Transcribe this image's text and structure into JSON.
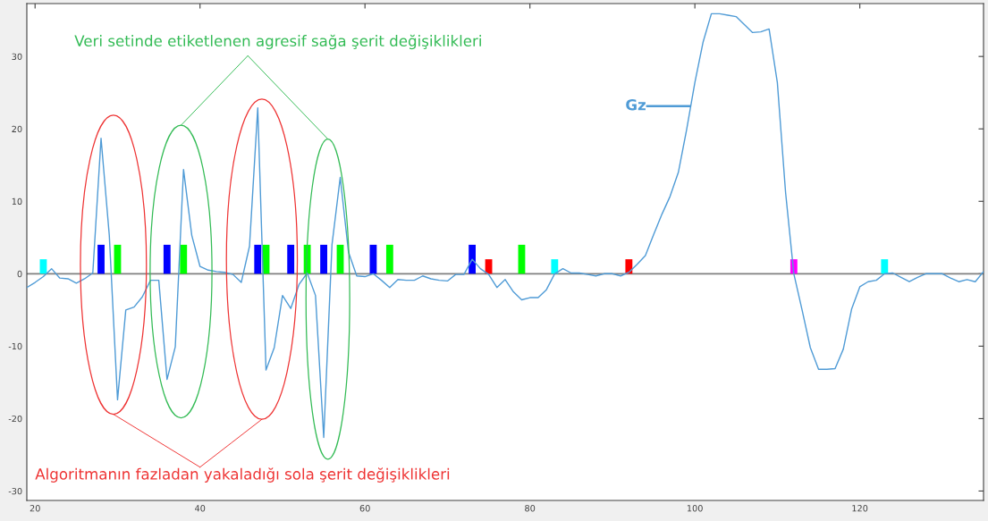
{
  "chart_data": {
    "type": "line",
    "xlim": [
      19,
      135
    ],
    "ylim": [
      -31.3,
      37.3
    ],
    "xticks": [
      20,
      40,
      60,
      80,
      100,
      120
    ],
    "yticks": [
      -30,
      -20,
      -10,
      0,
      10,
      20,
      30
    ],
    "grid": false,
    "annotations": [
      "Veri setinde etiketlenen agresif sağa şerit değişiklikleri",
      "Algoritmanın fazladan yakaladığı sola şerit değişiklikleri"
    ],
    "ref_lines": [
      {
        "axis": "y",
        "value": 0,
        "color": "#808080"
      }
    ],
    "series": [
      {
        "name": "Gz",
        "color": "#4f9bd6",
        "x": [
          19,
          20,
          21,
          22,
          23,
          24,
          25,
          26,
          27,
          28,
          29,
          30,
          31,
          32,
          33,
          34,
          35,
          36,
          37,
          38,
          39,
          40,
          41,
          42,
          43,
          44,
          45,
          46,
          47,
          48,
          49,
          50,
          51,
          52,
          53,
          54,
          55,
          56,
          57,
          58,
          59,
          60,
          61,
          62,
          63,
          64,
          65,
          66,
          67,
          68,
          69,
          70,
          71,
          72,
          73,
          74,
          75,
          76,
          77,
          78,
          79,
          80,
          81,
          82,
          83,
          84,
          85,
          86,
          87,
          88,
          89,
          90,
          91,
          92,
          93,
          94,
          95,
          96,
          97,
          98,
          99,
          100,
          101,
          102,
          103,
          104,
          105,
          106,
          107,
          108,
          109,
          110,
          111,
          112,
          113,
          114,
          115,
          116,
          117,
          118,
          119,
          120,
          121,
          122,
          123,
          124,
          125,
          126,
          127,
          128,
          129,
          130,
          131,
          132,
          133,
          134,
          135
        ],
        "values": [
          -1.9,
          -1.2,
          -0.4,
          0.7,
          -0.6,
          -0.7,
          -1.3,
          -0.7,
          0.1,
          18.7,
          5.3,
          -17.4,
          -5.0,
          -4.6,
          -3.2,
          -0.9,
          -0.9,
          -14.6,
          -10.1,
          14.4,
          5.3,
          1.0,
          0.5,
          0.3,
          0.2,
          -0.1,
          -1.2,
          3.8,
          22.9,
          -13.3,
          -10.2,
          -3.0,
          -4.8,
          -1.5,
          0.1,
          -3.0,
          -22.6,
          4.0,
          13.3,
          3.0,
          -0.3,
          -0.4,
          0,
          -0.9,
          -1.9,
          -0.8,
          -0.9,
          -0.9,
          -0.3,
          -0.7,
          -0.9,
          -1.0,
          -0.1,
          -0.1,
          2.0,
          0.7,
          -0.1,
          -1.9,
          -0.8,
          -2.5,
          -3.6,
          -3.3,
          -3.3,
          -2.2,
          0,
          0.7,
          0.1,
          0.1,
          -0.1,
          -0.3,
          0,
          0,
          -0.3,
          0.2,
          1.3,
          2.5,
          5.4,
          8.2,
          10.7,
          14.0,
          19.9,
          26.4,
          32.0,
          35.9,
          35.9,
          35.7,
          35.5,
          34.4,
          33.3,
          33.4,
          33.8,
          26.4,
          11.2,
          0,
          -5.0,
          -10.2,
          -13.2,
          -13.2,
          -13.1,
          -10.4,
          -4.9,
          -1.8,
          -1.1,
          -0.9,
          0,
          0.1,
          -0.5,
          -1.1,
          -0.5,
          0,
          0,
          0,
          -0.6,
          -1.1,
          -0.8,
          -1.1,
          0.3
        ]
      },
      {
        "type": "bar",
        "x": [
          21,
          28,
          30,
          36,
          38,
          47,
          48,
          51,
          53,
          55,
          57,
          61,
          63,
          73,
          75,
          79,
          83,
          92,
          112,
          123
        ],
        "values": [
          2,
          4,
          4,
          4,
          4,
          4,
          4,
          4,
          4,
          4,
          4,
          4,
          4,
          4,
          2,
          4,
          2,
          2,
          2,
          2
        ],
        "colors": [
          "#00ffff",
          "#0000ff",
          "#00ff00",
          "#0000ff",
          "#00ff00",
          "#0000ff",
          "#00ff00",
          "#0000ff",
          "#00ff00",
          "#0000ff",
          "#00ff00",
          "#0000ff",
          "#00ff00",
          "#0000ff",
          "#ff0000",
          "#00ff00",
          "#00ffff",
          "#ff0000",
          "#ff00ff",
          "#00ffff"
        ]
      }
    ]
  }
}
